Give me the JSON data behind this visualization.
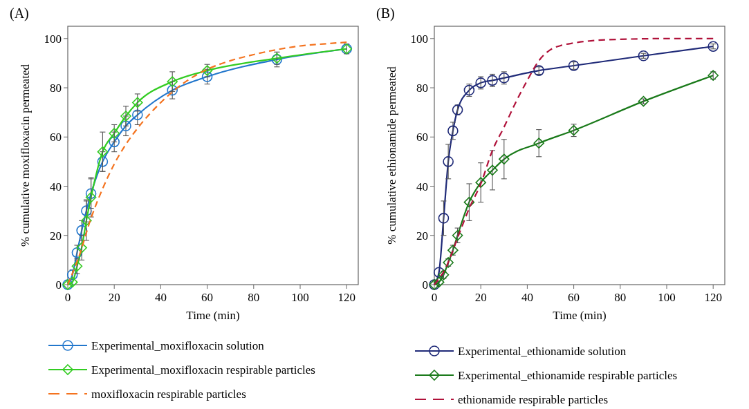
{
  "chart_data": [
    {
      "type": "line",
      "title": "(A)",
      "xlabel": "Time (min)",
      "ylabel": "% cumulative moxifloxacin permeated",
      "xlim": [
        0,
        125
      ],
      "ylim": [
        0,
        105
      ],
      "xticks": [
        0,
        20,
        40,
        60,
        80,
        100,
        120
      ],
      "yticks": [
        0,
        20,
        40,
        60,
        80,
        100
      ],
      "legend": "bottom",
      "series": [
        {
          "name": "Experimental_moxifloxacin solution",
          "color": "#2277cc",
          "marker": "circle",
          "line_style": "solid",
          "x": [
            0,
            2,
            4,
            6,
            8,
            10,
            15,
            20,
            25,
            30,
            45,
            60,
            90,
            120
          ],
          "values": [
            0,
            4,
            13,
            22,
            30,
            37,
            50,
            58,
            64.5,
            69,
            79,
            84.5,
            91.5,
            95.8
          ],
          "errors": [
            null,
            2,
            3,
            4,
            4.5,
            6,
            4,
            4,
            4,
            4,
            3.5,
            3,
            3,
            null
          ]
        },
        {
          "name": "Experimental_moxifloxacin respirable particles",
          "color": "#33cc22",
          "marker": "diamond",
          "line_style": "solid",
          "x": [
            0,
            2,
            4,
            6,
            8,
            10,
            15,
            20,
            25,
            30,
            45,
            60,
            90,
            120
          ],
          "values": [
            0,
            1,
            7.5,
            15,
            26,
            35.5,
            54,
            61.5,
            68.5,
            74,
            82.5,
            87,
            92,
            95.8
          ],
          "errors": [
            null,
            null,
            3,
            5,
            8,
            8,
            8,
            3.5,
            4,
            3.5,
            4,
            2.5,
            2.5,
            2
          ]
        },
        {
          "name": "moxifloxacin respirable particles",
          "color": "#f4731f",
          "marker": "none",
          "line_style": "dashed",
          "x": [
            0,
            5,
            10,
            15,
            20,
            25,
            30,
            40,
            50,
            60,
            70,
            80,
            90,
            100,
            110,
            120
          ],
          "values": [
            0,
            12,
            27,
            39,
            49,
            57,
            63.5,
            74,
            82,
            87.5,
            91,
            93.5,
            95.5,
            97,
            97.8,
            98.5
          ]
        }
      ]
    },
    {
      "type": "line",
      "title": "(B)",
      "xlabel": "Time (min)",
      "ylabel": "% cumulative ethionamide permeated",
      "xlim": [
        0,
        125
      ],
      "ylim": [
        0,
        105
      ],
      "xticks": [
        0,
        20,
        40,
        60,
        80,
        100,
        120
      ],
      "yticks": [
        0,
        20,
        40,
        60,
        80,
        100
      ],
      "legend": "bottom",
      "series": [
        {
          "name": "Experimental_ethionamide solution",
          "color": "#1f2a78",
          "marker": "circle",
          "line_style": "solid",
          "x": [
            0,
            2,
            4,
            6,
            8,
            10,
            15,
            20,
            25,
            30,
            45,
            60,
            90,
            120
          ],
          "values": [
            0,
            5,
            27,
            50,
            62.5,
            71,
            79,
            82,
            83,
            84,
            87,
            89,
            93,
            96.8
          ],
          "errors": [
            null,
            null,
            7,
            7,
            3.5,
            2,
            2.5,
            2.5,
            2.5,
            2.5,
            1.5,
            1.5,
            1,
            1
          ]
        },
        {
          "name": "Experimental_ethionamide respirable particles",
          "color": "#1a7a1a",
          "marker": "diamond",
          "line_style": "solid",
          "x": [
            0,
            2,
            4,
            6,
            8,
            10,
            15,
            20,
            25,
            30,
            45,
            60,
            90,
            120
          ],
          "values": [
            0,
            1,
            4,
            9,
            14,
            20,
            33.5,
            41.5,
            46.5,
            51,
            57.5,
            62.7,
            74.5,
            85
          ],
          "errors": [
            null,
            null,
            1.5,
            1.5,
            2,
            3,
            7.5,
            8,
            8,
            8,
            5.5,
            2.5,
            1,
            1.5
          ]
        },
        {
          "name": "ethionamide respirable particles",
          "color": "#b0123a",
          "marker": "none",
          "line_style": "dashed",
          "x": [
            0,
            5,
            10,
            15,
            20,
            25,
            30,
            35,
            40,
            45,
            50,
            55,
            60,
            70,
            80,
            90,
            100,
            120
          ],
          "values": [
            0,
            7,
            19,
            31,
            41,
            54.5,
            64,
            74,
            83,
            91,
            95.5,
            97.3,
            98.2,
            99.3,
            99.7,
            99.9,
            100,
            100
          ]
        }
      ]
    }
  ]
}
